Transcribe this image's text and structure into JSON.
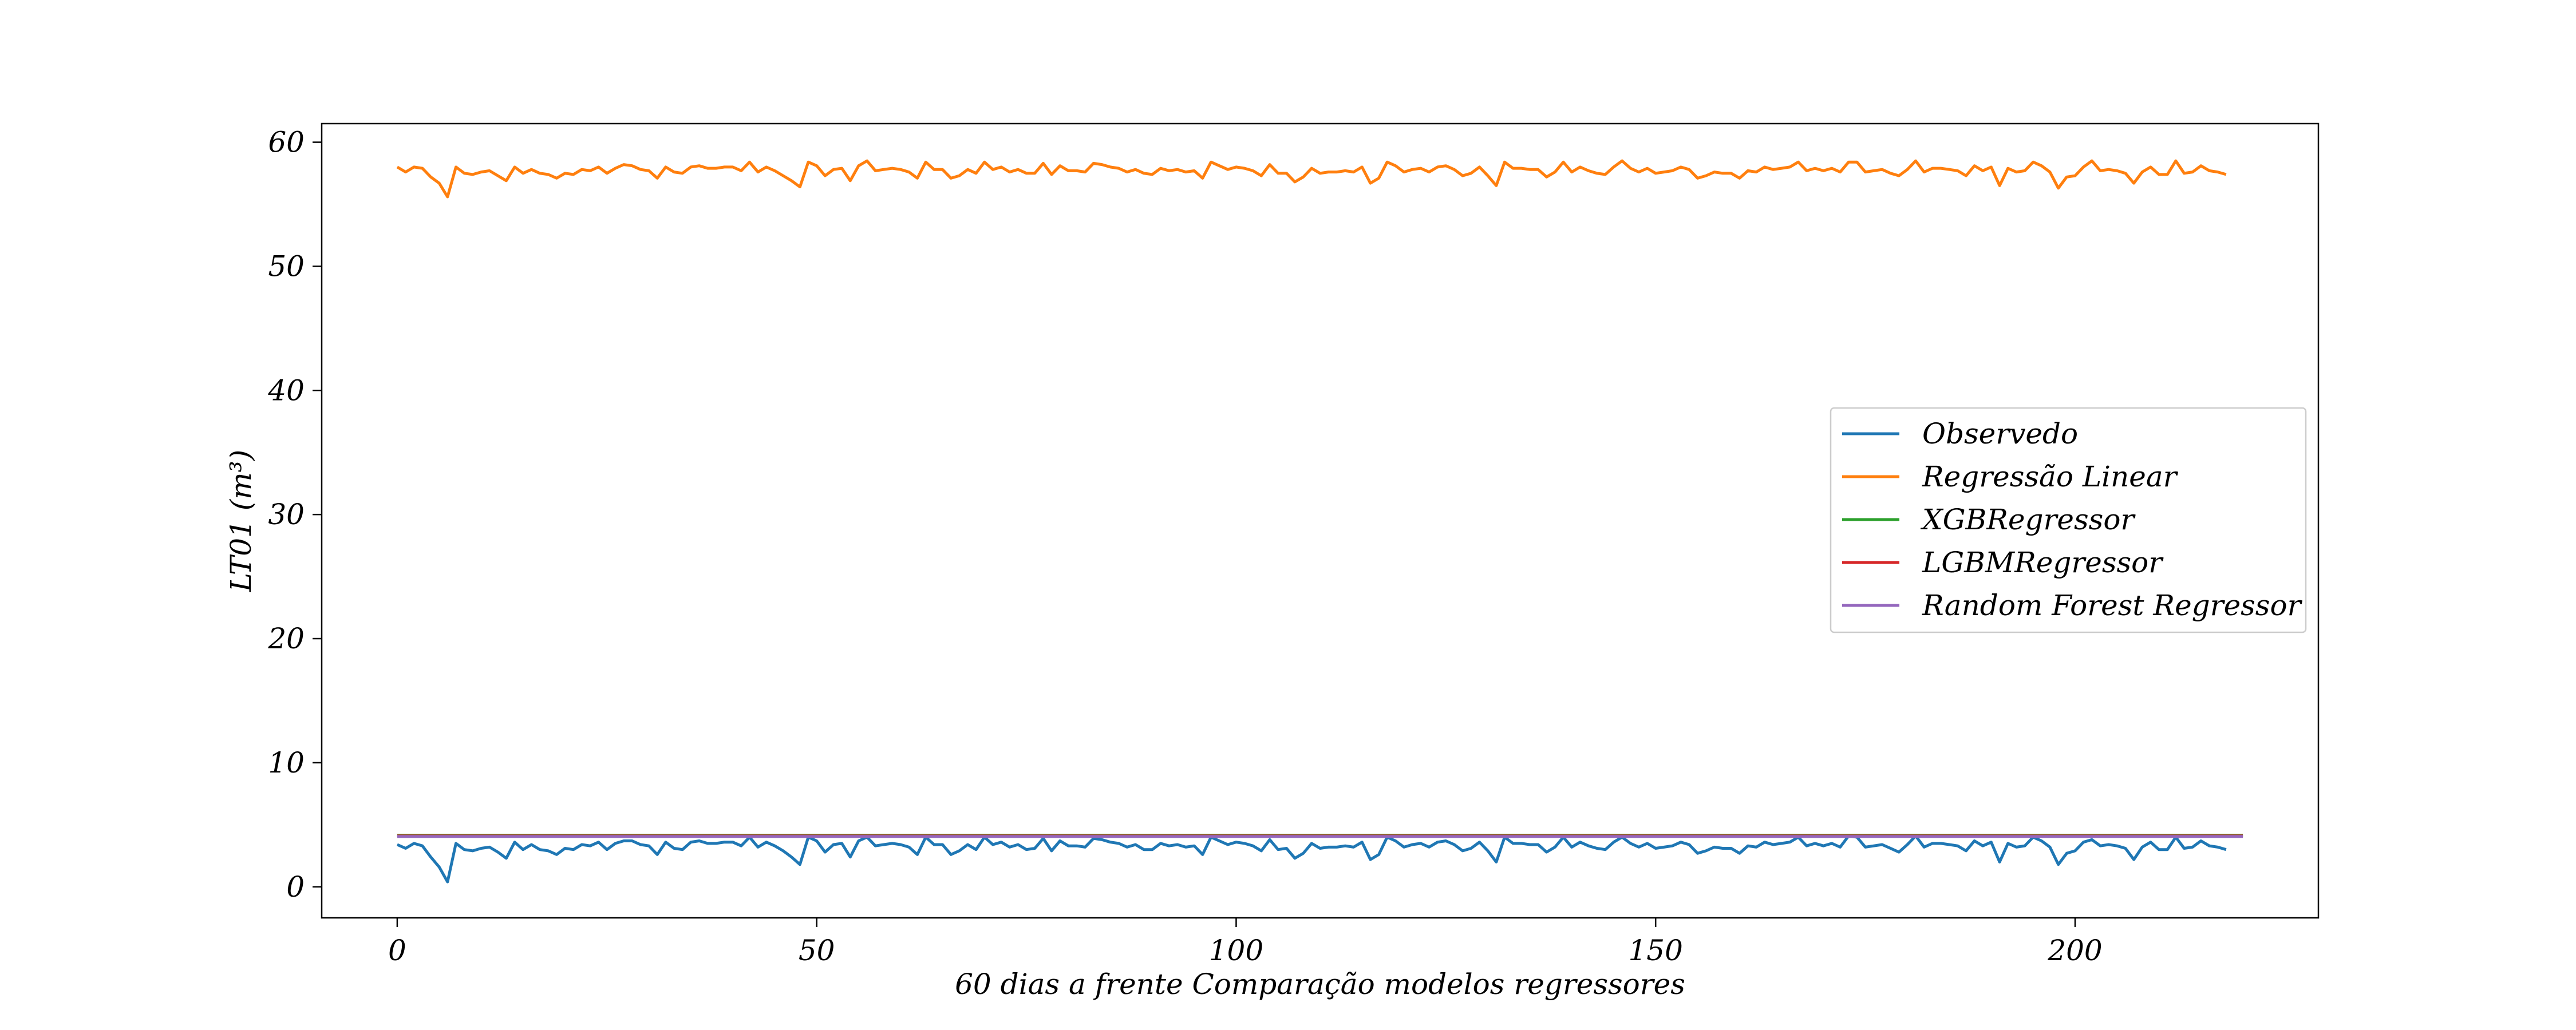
{
  "chart_data": {
    "type": "line",
    "title": "",
    "xlabel": "60 dias a frente Comparação modelos regressores",
    "ylabel": "LT01 (m³)",
    "xlim": [
      -9,
      229
    ],
    "ylim": [
      -2.5,
      61.5
    ],
    "xticks": [
      0,
      50,
      100,
      150,
      200
    ],
    "yticks": [
      0,
      10,
      20,
      30,
      40,
      50,
      60
    ],
    "grid": false,
    "legend_position": "center-right",
    "series": [
      {
        "name": "Observedo",
        "color": "#1f77b4",
        "x_start": 0,
        "values": [
          3.4,
          3.1,
          3.5,
          3.3,
          2.4,
          1.6,
          0.4,
          3.5,
          3.0,
          2.9,
          3.1,
          3.2,
          2.8,
          2.3,
          3.6,
          3.0,
          3.4,
          3.0,
          2.9,
          2.6,
          3.1,
          3.0,
          3.4,
          3.3,
          3.6,
          3.0,
          3.5,
          3.7,
          3.7,
          3.4,
          3.3,
          2.6,
          3.6,
          3.1,
          3.0,
          3.6,
          3.7,
          3.5,
          3.5,
          3.6,
          3.6,
          3.3,
          4.0,
          3.2,
          3.6,
          3.3,
          2.9,
          2.4,
          1.8,
          4.0,
          3.7,
          2.8,
          3.4,
          3.5,
          2.4,
          3.7,
          4.0,
          3.3,
          3.4,
          3.5,
          3.4,
          3.2,
          2.6,
          4.0,
          3.4,
          3.4,
          2.6,
          2.9,
          3.4,
          3.0,
          4.0,
          3.4,
          3.6,
          3.2,
          3.4,
          3.0,
          3.1,
          3.9,
          2.9,
          3.7,
          3.3,
          3.3,
          3.2,
          3.9,
          3.8,
          3.6,
          3.5,
          3.2,
          3.4,
          3.0,
          3.0,
          3.5,
          3.3,
          3.4,
          3.2,
          3.3,
          2.6,
          4.0,
          3.7,
          3.4,
          3.6,
          3.5,
          3.3,
          2.9,
          3.8,
          3.0,
          3.1,
          2.3,
          2.7,
          3.5,
          3.1,
          3.2,
          3.2,
          3.3,
          3.2,
          3.6,
          2.2,
          2.6,
          4.0,
          3.7,
          3.2,
          3.4,
          3.5,
          3.2,
          3.6,
          3.7,
          3.4,
          2.9,
          3.1,
          3.6,
          2.9,
          2.0,
          4.0,
          3.5,
          3.5,
          3.4,
          3.4,
          2.8,
          3.2,
          4.0,
          3.2,
          3.6,
          3.3,
          3.1,
          3.0,
          3.6,
          4.0,
          3.5,
          3.2,
          3.5,
          3.1,
          3.2,
          3.3,
          3.6,
          3.4,
          2.7,
          2.9,
          3.2,
          3.1,
          3.1,
          2.7,
          3.3,
          3.2,
          3.6,
          3.4,
          3.5,
          3.6,
          4.0,
          3.3,
          3.5,
          3.3,
          3.5,
          3.2,
          4.1,
          4.0,
          3.2,
          3.3,
          3.4,
          3.1,
          2.8,
          3.4,
          4.1,
          3.2,
          3.5,
          3.5,
          3.4,
          3.3,
          2.9,
          3.7,
          3.3,
          3.6,
          2.0,
          3.5,
          3.2,
          3.3,
          4.0,
          3.7,
          3.2,
          1.8,
          2.7,
          2.9,
          3.6,
          3.8,
          3.3,
          3.4,
          3.3,
          3.1,
          2.2,
          3.2,
          3.6,
          3.0,
          3.0,
          4.0,
          3.1,
          3.2,
          3.7,
          3.3,
          3.2,
          3.0
        ]
      },
      {
        "name": "Regressão Linear",
        "color": "#ff7f0e",
        "x_start": 0,
        "values": [
          58.0,
          57.6,
          58.0,
          57.9,
          57.2,
          56.7,
          55.6,
          58.0,
          57.5,
          57.4,
          57.6,
          57.7,
          57.3,
          56.9,
          58.0,
          57.5,
          57.8,
          57.5,
          57.4,
          57.1,
          57.5,
          57.4,
          57.8,
          57.7,
          58.0,
          57.5,
          57.9,
          58.2,
          58.1,
          57.8,
          57.7,
          57.1,
          58.0,
          57.6,
          57.5,
          58.0,
          58.1,
          57.9,
          57.9,
          58.0,
          58.0,
          57.7,
          58.4,
          57.6,
          58.0,
          57.7,
          57.3,
          56.9,
          56.4,
          58.4,
          58.1,
          57.3,
          57.8,
          57.9,
          56.9,
          58.1,
          58.5,
          57.7,
          57.8,
          57.9,
          57.8,
          57.6,
          57.1,
          58.4,
          57.8,
          57.8,
          57.1,
          57.3,
          57.8,
          57.5,
          58.4,
          57.8,
          58.0,
          57.6,
          57.8,
          57.5,
          57.5,
          58.3,
          57.4,
          58.1,
          57.7,
          57.7,
          57.6,
          58.3,
          58.2,
          58.0,
          57.9,
          57.6,
          57.8,
          57.5,
          57.4,
          57.9,
          57.7,
          57.8,
          57.6,
          57.7,
          57.1,
          58.4,
          58.1,
          57.8,
          58.0,
          57.9,
          57.7,
          57.3,
          58.2,
          57.5,
          57.5,
          56.8,
          57.2,
          57.9,
          57.5,
          57.6,
          57.6,
          57.7,
          57.6,
          58.0,
          56.7,
          57.1,
          58.4,
          58.1,
          57.6,
          57.8,
          57.9,
          57.6,
          58.0,
          58.1,
          57.8,
          57.3,
          57.5,
          58.0,
          57.3,
          56.5,
          58.4,
          57.9,
          57.9,
          57.8,
          57.8,
          57.2,
          57.6,
          58.4,
          57.6,
          58.0,
          57.7,
          57.5,
          57.4,
          58.0,
          58.5,
          57.9,
          57.6,
          57.9,
          57.5,
          57.6,
          57.7,
          58.0,
          57.8,
          57.1,
          57.3,
          57.6,
          57.5,
          57.5,
          57.1,
          57.7,
          57.6,
          58.0,
          57.8,
          57.9,
          58.0,
          58.4,
          57.7,
          57.9,
          57.7,
          57.9,
          57.6,
          58.4,
          58.4,
          57.6,
          57.7,
          57.8,
          57.5,
          57.3,
          57.8,
          58.5,
          57.6,
          57.9,
          57.9,
          57.8,
          57.7,
          57.3,
          58.1,
          57.7,
          58.0,
          56.5,
          57.9,
          57.6,
          57.7,
          58.4,
          58.1,
          57.6,
          56.3,
          57.2,
          57.3,
          58.0,
          58.5,
          57.7,
          57.8,
          57.7,
          57.5,
          56.7,
          57.6,
          58.0,
          57.4,
          57.4,
          58.5,
          57.5,
          57.6,
          58.1,
          57.7,
          57.6,
          57.4
        ]
      },
      {
        "name": "XGBRegressor",
        "color": "#2ca02c",
        "constant": 4.15,
        "x_range": [
          0,
          220
        ]
      },
      {
        "name": "LGBMRegressor",
        "color": "#d62728",
        "constant": 4.1,
        "x_range": [
          0,
          220
        ]
      },
      {
        "name": "Random Forest Regressor",
        "color": "#9467bd",
        "constant": 4.05,
        "x_range": [
          0,
          220
        ]
      }
    ]
  }
}
